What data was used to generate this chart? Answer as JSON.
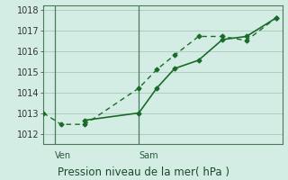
{
  "title": "Pression niveau de la mer( hPa )",
  "background_color": "#d4ede4",
  "plot_bg_color": "#d4ede4",
  "line_color": "#1a6b2a",
  "grid_color": "#b0ccbf",
  "spine_color": "#4a7a5a",
  "ylim": [
    1011.5,
    1018.2
  ],
  "yticks": [
    1012,
    1013,
    1014,
    1015,
    1016,
    1017,
    1018
  ],
  "xlim": [
    0,
    20
  ],
  "xtick_labels": [
    "Ven",
    "Sam"
  ],
  "xtick_positions": [
    1,
    8
  ],
  "vline_x": [
    1,
    8
  ],
  "series1_x": [
    0,
    1.5,
    3.5,
    8,
    9.5,
    11,
    13,
    15,
    17,
    19.5
  ],
  "series1_y": [
    1013.0,
    1012.45,
    1012.45,
    1014.2,
    1015.1,
    1015.8,
    1016.7,
    1016.7,
    1016.5,
    1017.6
  ],
  "series2_x": [
    3.5,
    8,
    9.5,
    11,
    13,
    15,
    17,
    19.5
  ],
  "series2_y": [
    1012.65,
    1013.0,
    1014.2,
    1015.15,
    1015.55,
    1016.55,
    1016.7,
    1017.6
  ],
  "tick_fontsize": 7,
  "title_fontsize": 8.5
}
